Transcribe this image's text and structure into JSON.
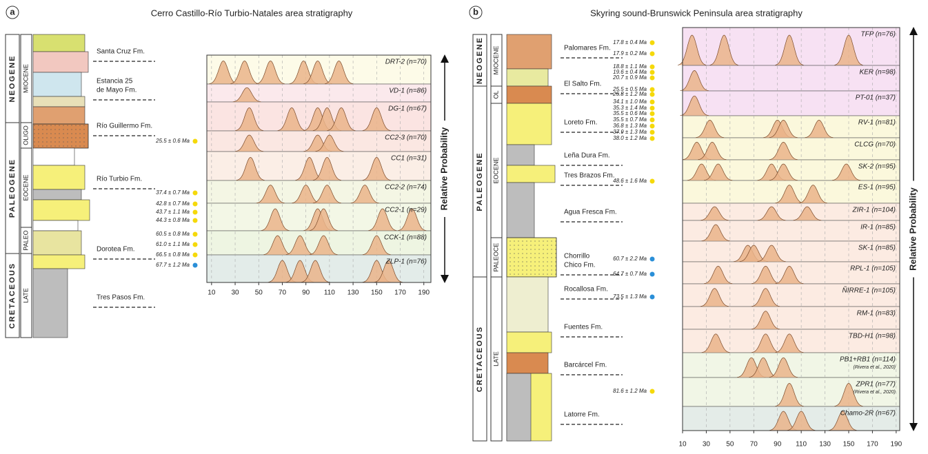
{
  "panels": [
    {
      "letter": "a",
      "title": "Cerro Castillo-Río Turbio-Natales area stratigraphy",
      "eras": [
        "NEOGENE",
        "PALEOGENE",
        "CRETACEOUS"
      ],
      "epochs": [
        "MIOCENE",
        "OLIGO",
        "EOCENE",
        "PALEO",
        "LATE"
      ],
      "formations": [
        "Santa Cruz Fm.",
        [
          "Estancia 25",
          "de Mayo Fm."
        ],
        "Río Guillermo Fm.",
        "Río Turbio Fm.",
        "Dorotea Fm.",
        "Tres Pasos Fm."
      ],
      "ages": [
        {
          "label": "25.5 ± 0.6 Ma",
          "dot": "#f5d90a"
        },
        {
          "label": "37.4 ± 0.7 Ma",
          "dot": "#f5d90a"
        },
        {
          "label": "42.8 ± 0.7 Ma",
          "dot": "#f5d90a"
        },
        {
          "label": "43.7 ± 1.1 Ma",
          "dot": "#f5d90a"
        },
        {
          "label": "44.3 ± 0.8 Ma",
          "dot": "#f5d90a"
        },
        {
          "label": "60.5 ± 0.8 Ma",
          "dot": "#f5d90a"
        },
        {
          "label": "61.0 ± 1.1 Ma",
          "dot": "#f5d90a"
        },
        {
          "label": "66.5 ± 0.8 Ma",
          "dot": "#f5d90a"
        },
        {
          "label": "67.7 ± 1.2 Ma",
          "dot": "#2a8fd8"
        }
      ],
      "plot": {
        "xlim": [
          6,
          196
        ],
        "xticks": [
          10,
          30,
          50,
          70,
          90,
          110,
          130,
          150,
          170,
          190
        ],
        "y_label": "Relative Probability",
        "samples": [
          {
            "name": "DRT-2 (n=70)",
            "color": "#fdfbe8",
            "peaks": [
              20,
              38,
              60,
              88,
              100,
              118
            ]
          },
          {
            "name": "VD-1 (n=86)",
            "color": "#fbe9ec",
            "peaks": [
              40
            ]
          },
          {
            "name": "DG-1 (n=67)",
            "color": "#fbe4e2",
            "peaks": [
              42,
              78,
              100,
              108,
              120,
              150
            ]
          },
          {
            "name": "CC2-3 (n=70)",
            "color": "#fbe7e2",
            "peaks": [
              42,
              100,
              110
            ]
          },
          {
            "name": "CC1 (n=31)",
            "color": "#fbeee6",
            "peaks": [
              43,
              93,
              108,
              150
            ]
          },
          {
            "name": "CC2-2 (n=74)",
            "color": "#f4f6e4",
            "peaks": [
              60,
              90,
              108,
              140
            ]
          },
          {
            "name": "CC2-1 (n=29)",
            "color": "#f3f7e6",
            "peaks": [
              64,
              100,
              105,
              155,
              180
            ]
          },
          {
            "name": "CCK-1 (n=88)",
            "color": "#eef5e2",
            "peaks": [
              66,
              85,
              105,
              150
            ]
          },
          {
            "name": "ZLP-1 (n=76)",
            "color": "#e3ece9",
            "peaks": [
              70,
              85,
              98,
              150,
              160
            ]
          }
        ]
      }
    },
    {
      "letter": "b",
      "title": "Skyring sound-Brunswick Peninsula area stratigraphy",
      "eras": [
        "NEOGENE",
        "PALEOGENE",
        "CRETACEOUS"
      ],
      "epochs": [
        "MIOCENE",
        "OL",
        "EOCENE",
        "PALEOCE",
        "LATE"
      ],
      "formations": [
        "Palomares Fm.",
        "El Salto Fm.",
        "Loreto Fm.",
        "Leña Dura Fm.",
        "Tres Brazos Fm.",
        "Agua Fresca Fm.",
        [
          "Chorrillo",
          "Chico Fm."
        ],
        "Rocallosa Fm.",
        "Fuentes Fm.",
        "Barcárcel Fm.",
        "Latorre Fm."
      ],
      "ages": [
        {
          "label": "17.8 ± 0.4 Ma",
          "dot": "#f5d90a"
        },
        {
          "label": "17.9 ± 0.2 Ma",
          "dot": "#f5d90a"
        },
        {
          "label": "18.8 ± 1.1 Ma",
          "dot": "#f5d90a"
        },
        {
          "label": "19.6 ± 0.4 Ma",
          "dot": "#f5d90a"
        },
        {
          "label": "20.7 ± 0.9 Ma",
          "dot": "#f5d90a"
        },
        {
          "label": "25.5 ± 0.5 Ma",
          "dot": "#f5d90a"
        },
        {
          "label": "25.8 ± 1.2 Ma",
          "dot": "#f5d90a"
        },
        {
          "label": "34.1 ± 1.0 Ma",
          "dot": "#f5d90a"
        },
        {
          "label": "35.3 ± 1.4 Ma",
          "dot": "#f5d90a"
        },
        {
          "label": "35.5 ± 0.6 Ma",
          "dot": "#f5d90a"
        },
        {
          "label": "35.5 ± 0.7 Ma",
          "dot": "#f5d90a"
        },
        {
          "label": "36.8 ± 1.3 Ma",
          "dot": "#f5d90a"
        },
        {
          "label": "37.9 ± 1.3 Ma",
          "dot": "#f5d90a"
        },
        {
          "label": "38.0 ± 1.2 Ma",
          "dot": "#f5d90a"
        },
        {
          "label": "48.6 ± 1.6 Ma",
          "dot": "#f5d90a"
        },
        {
          "label": "60.7 ± 2.2 Ma",
          "dot": "#2a8fd8"
        },
        {
          "label": "64.7 ± 0.7 Ma",
          "dot": "#2a8fd8"
        },
        {
          "label": "73.5 ± 1.3 Ma",
          "dot": "#2a8fd8"
        },
        {
          "label": "81.6 ± 1.2 Ma",
          "dot": "#f5d90a"
        }
      ],
      "plot": {
        "xlim": [
          10,
          193
        ],
        "xticks": [
          10,
          30,
          50,
          70,
          90,
          110,
          130,
          150,
          170,
          190
        ],
        "y_label": "Relative Probability",
        "samples": [
          {
            "name": "TFP (n=76)",
            "color": "#f7e1f3",
            "peaks": [
              18,
              45,
              100,
              150
            ]
          },
          {
            "name": "KER (n=98)",
            "color": "#f7e1f3",
            "peaks": [
              20
            ]
          },
          {
            "name": "PT-01 (n=37)",
            "color": "#f7e1f3",
            "peaks": [
              20
            ]
          },
          {
            "name": "RV-1 (n=81)",
            "color": "#fbf8dc",
            "peaks": [
              33,
              90,
              95,
              125
            ]
          },
          {
            "name": "CLCG (n=70)",
            "color": "#fbf8dc",
            "peaks": [
              22,
              35,
              95
            ]
          },
          {
            "name": "SK-2 (n=95)",
            "color": "#fbf8dc",
            "peaks": [
              26,
              40,
              85,
              95,
              148
            ]
          },
          {
            "name": "ES-1 (n=95)",
            "color": "#fbf8dc",
            "peaks": [
              100,
              120
            ]
          },
          {
            "name": "ZIR-1 (n=104)",
            "color": "#fcebe2",
            "peaks": [
              37,
              85,
              115
            ]
          },
          {
            "name": "IR-1 (n=85)",
            "color": "#fcebe2",
            "peaks": [
              38
            ]
          },
          {
            "name": "SK-1 (n=85)",
            "color": "#fcebe2",
            "peaks": [
              65,
              70,
              85
            ]
          },
          {
            "name": "RPL-1 (n=105)",
            "color": "#fcebe2",
            "peaks": [
              40,
              80,
              100
            ]
          },
          {
            "name": "ÑIRRE-1 (n=105)",
            "color": "#fcebe2",
            "peaks": [
              37,
              80
            ]
          },
          {
            "name": "RM-1 (n=83)",
            "color": "#fcebe2",
            "peaks": [
              80
            ]
          },
          {
            "name": "TBD-H1 (n=98)",
            "color": "#fcebe2",
            "peaks": [
              38,
              80,
              100
            ]
          },
          {
            "name": "PB1+RB1 (n=114)",
            "note": "(Rivera et al., 2020)",
            "color": "#f1f6e6",
            "peaks": [
              68,
              78,
              95
            ]
          },
          {
            "name": "ZPR1 (n=77)",
            "note": "(Rivera et al., 2020)",
            "color": "#f1f6e6",
            "peaks": [
              100,
              150
            ]
          },
          {
            "name": "Chamo-2R (n=67)",
            "color": "#e4ece8",
            "peaks": [
              95,
              110,
              145
            ]
          }
        ]
      }
    }
  ]
}
